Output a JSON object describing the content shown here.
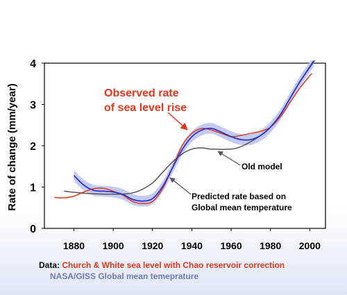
{
  "chart_data": {
    "type": "line",
    "xlabel": "",
    "ylabel": "Rate of change (mm/year)",
    "xlim": [
      1865,
      2008
    ],
    "ylim": [
      0,
      4
    ],
    "xticks": [
      1880,
      1900,
      1920,
      1940,
      1960,
      1980,
      2000
    ],
    "yticks": [
      0,
      1,
      2,
      3,
      4
    ],
    "grid": false,
    "series": [
      {
        "name": "Observed rate of sea level rise",
        "color": "#e8361b",
        "x": [
          1870,
          1875,
          1880,
          1885,
          1890,
          1895,
          1900,
          1905,
          1910,
          1915,
          1920,
          1925,
          1930,
          1935,
          1940,
          1945,
          1950,
          1955,
          1960,
          1965,
          1970,
          1975,
          1980,
          1985,
          1990,
          1995,
          2001
        ],
        "y": [
          0.75,
          0.74,
          0.78,
          0.88,
          0.96,
          0.97,
          0.9,
          0.8,
          0.65,
          0.6,
          0.65,
          0.95,
          1.45,
          2.0,
          2.3,
          2.42,
          2.38,
          2.3,
          2.22,
          2.25,
          2.3,
          2.35,
          2.45,
          2.7,
          3.05,
          3.4,
          3.75
        ]
      },
      {
        "name": "Predicted rate based on Global mean temperature",
        "color": "#2a36c8",
        "band_color": "#bcc4f2",
        "x": [
          1880,
          1885,
          1890,
          1895,
          1900,
          1905,
          1910,
          1915,
          1920,
          1925,
          1930,
          1935,
          1940,
          1945,
          1950,
          1955,
          1960,
          1965,
          1970,
          1975,
          1980,
          1985,
          1990,
          1995,
          2002
        ],
        "y": [
          1.28,
          1.05,
          0.92,
          0.9,
          0.88,
          0.82,
          0.7,
          0.66,
          0.72,
          1.0,
          1.45,
          1.9,
          2.22,
          2.38,
          2.42,
          2.33,
          2.22,
          2.15,
          2.15,
          2.25,
          2.45,
          2.75,
          3.15,
          3.55,
          4.05
        ]
      },
      {
        "name": "Old model",
        "color": "#555555",
        "x": [
          1875,
          1885,
          1895,
          1905,
          1910,
          1915,
          1920,
          1925,
          1930,
          1935,
          1940,
          1945,
          1950,
          1960,
          1965,
          1970,
          1975,
          1980,
          1985,
          1990,
          1995,
          2003
        ],
        "y": [
          0.9,
          0.85,
          0.83,
          0.83,
          0.86,
          0.95,
          1.1,
          1.35,
          1.6,
          1.8,
          1.92,
          1.95,
          1.92,
          1.92,
          1.98,
          2.1,
          2.25,
          2.45,
          2.75,
          3.15,
          3.55,
          4.1
        ]
      }
    ],
    "annotations": [
      {
        "line1": "Observed rate",
        "line2": "of sea level rise",
        "color": "#e8361b"
      },
      {
        "line1": "Old model"
      },
      {
        "line1": "Predicted rate based on",
        "line2": "Global mean temperature"
      }
    ],
    "caption": {
      "prefix": "Data: ",
      "line1": "Church & White sea level with Chao reservoir correction",
      "line2": "NASA/GISS Global mean temeprature"
    }
  }
}
